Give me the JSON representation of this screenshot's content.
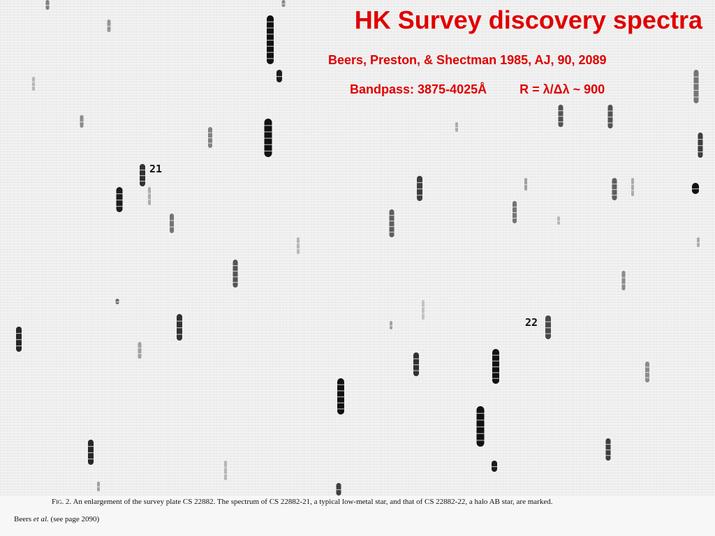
{
  "slide": {
    "title": "HK Survey discovery spectra",
    "citation": "Beers, Preston, & Shectman 1985, AJ, 90, 2089",
    "bandpass": "Bandpass: 3875-4025Å",
    "resolution": "R = λ/Δλ ~ 900"
  },
  "plate": {
    "markers": {
      "star_21": "21",
      "star_22": "22"
    }
  },
  "figure": {
    "label": "Fig. 2.",
    "caption": "An enlargement of the survey plate CS 22882. The spectrum of CS 22882-21, a typical low-metal star, and that of CS 22882-22, a halo AB star, are marked.",
    "credit_prefix": "Beers ",
    "credit_etal": "et al.",
    "credit_suffix": " (see page 2090)"
  },
  "colors": {
    "title": "#e00000",
    "plate_background": "#f2f2f2",
    "spectra": "#111111"
  }
}
